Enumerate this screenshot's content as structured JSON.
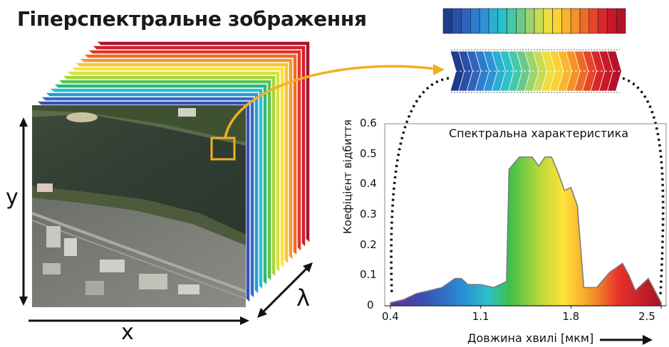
{
  "title": "Гіперспектральне зображення",
  "axes": {
    "y": "y",
    "x": "x",
    "lambda": "λ"
  },
  "chart": {
    "title": "Спектральна характеристика",
    "ylabel": "Коефіцієнт відбиття",
    "xlabel": "Довжина хвилі [мкм]",
    "yticks": [
      "0",
      "0.1",
      "0.2",
      "0.3",
      "0.4",
      "0.5",
      "0.6"
    ],
    "xticks": [
      "0.4",
      "1.1",
      "1.8",
      "2.5"
    ]
  },
  "chart_data": {
    "type": "area",
    "title": "Спектральна характеристика",
    "xlabel": "Довжина хвилі [мкм]",
    "ylabel": "Коефіцієнт відбиття",
    "xlim": [
      0.4,
      2.5
    ],
    "ylim": [
      0,
      0.6
    ],
    "x": [
      0.4,
      0.5,
      0.6,
      0.7,
      0.8,
      0.9,
      0.95,
      1.0,
      1.1,
      1.2,
      1.3,
      1.32,
      1.4,
      1.5,
      1.55,
      1.6,
      1.65,
      1.7,
      1.75,
      1.8,
      1.85,
      1.9,
      2.0,
      2.1,
      2.2,
      2.25,
      2.3,
      2.4,
      2.5
    ],
    "y": [
      0.01,
      0.02,
      0.04,
      0.05,
      0.06,
      0.09,
      0.09,
      0.07,
      0.07,
      0.06,
      0.08,
      0.45,
      0.49,
      0.49,
      0.46,
      0.49,
      0.49,
      0.44,
      0.38,
      0.39,
      0.33,
      0.06,
      0.06,
      0.11,
      0.14,
      0.1,
      0.05,
      0.09,
      0.01
    ],
    "grid": false
  }
}
